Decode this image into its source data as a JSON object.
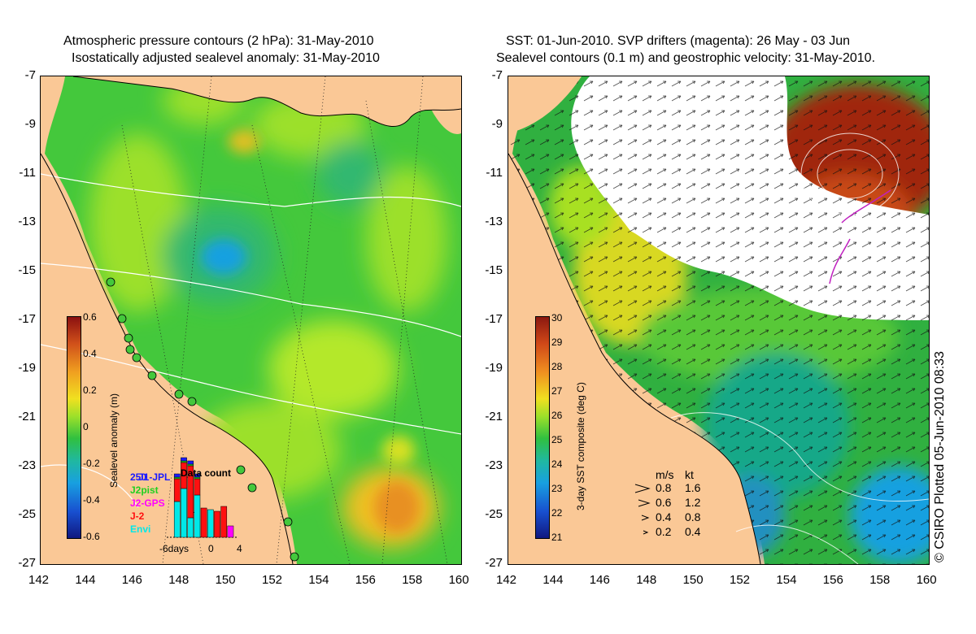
{
  "left_panel": {
    "title_line1": "Atmospheric pressure contours (2 hPa): 31-May-2010",
    "title_line2": "Isostatically adjusted sealevel anomaly: 31-May-2010",
    "colorbar": {
      "label": "Sealevel anomaly (m)",
      "ticks": [
        "0.6",
        "0.4",
        "0.2",
        "0",
        "-0.2",
        "-0.4",
        "-0.6"
      ]
    },
    "inset": {
      "title": "Data count",
      "ymax_label": "250",
      "legend": [
        {
          "label": "J1-JPL",
          "color": "#1a1aff"
        },
        {
          "label": "J2pist",
          "color": "#20d020"
        },
        {
          "label": "J2-GPS",
          "color": "#ff00ff"
        },
        {
          "label": "J-2",
          "color": "#ff1010"
        },
        {
          "label": "Envi",
          "color": "#00e8e8"
        }
      ],
      "x_ticks": [
        "-6days",
        "0",
        "4"
      ],
      "counts": [
        {
          "day": -6,
          "envi": 0,
          "j2": 0,
          "j2gps": 0,
          "j2pist": 0,
          "jpl": 0
        },
        {
          "day": -5,
          "envi": 110,
          "j2": 70,
          "j2gps": 0,
          "j2pist": 5,
          "jpl": 10
        },
        {
          "day": -4,
          "envi": 150,
          "j2": 80,
          "j2gps": 0,
          "j2pist": 5,
          "jpl": 10
        },
        {
          "day": -3,
          "envi": 60,
          "j2": 160,
          "j2gps": 0,
          "j2pist": 5,
          "jpl": 10
        },
        {
          "day": -2,
          "envi": 130,
          "j2": 50,
          "j2gps": 0,
          "j2pist": 5,
          "jpl": 10
        },
        {
          "day": -1,
          "envi": 0,
          "j2": 90,
          "j2gps": 0,
          "j2pist": 0,
          "jpl": 0
        },
        {
          "day": 0,
          "envi": 85,
          "j2": 0,
          "j2gps": 0,
          "j2pist": 0,
          "jpl": 0
        },
        {
          "day": 1,
          "envi": 0,
          "j2": 80,
          "j2gps": 0,
          "j2pist": 0,
          "jpl": 0
        },
        {
          "day": 2,
          "envi": 0,
          "j2": 95,
          "j2gps": 0,
          "j2pist": 0,
          "jpl": 0
        },
        {
          "day": 3,
          "envi": 0,
          "j2": 0,
          "j2gps": 35,
          "j2pist": 0,
          "jpl": 0
        }
      ]
    }
  },
  "right_panel": {
    "title_line1": "SST: 01-Jun-2010. SVP drifters (magenta): 26 May - 03 Jun",
    "title_line2": "Sealevel contours (0.1 m) and geostrophic velocity: 31-May-2010.",
    "colorbar": {
      "label": "3-day SST composite (deg C)",
      "ticks": [
        "30",
        "29",
        "28",
        "27",
        "26",
        "25",
        "24",
        "23",
        "22",
        "21"
      ]
    },
    "speed_legend": {
      "header_ms": "m/s",
      "header_kt": "kt",
      "rows": [
        {
          "ms": "0.8",
          "kt": "1.6"
        },
        {
          "ms": "0.6",
          "kt": "1.2"
        },
        {
          "ms": "0.4",
          "kt": "0.8"
        },
        {
          "ms": "0.2",
          "kt": "0.4"
        }
      ]
    },
    "credit": "© CSIRO Plotted 05-Jun-2010 08:33"
  },
  "axes": {
    "lat_ticks": [
      "-7",
      "-9",
      "-11",
      "-13",
      "-15",
      "-17",
      "-19",
      "-21",
      "-23",
      "-25",
      "-27"
    ],
    "lon_ticks": [
      "142",
      "144",
      "146",
      "148",
      "150",
      "152",
      "154",
      "156",
      "158",
      "160"
    ]
  },
  "colors": {
    "land": "#fac896",
    "sea_mid": "#44c83c",
    "sea_light": "#9ce02a",
    "anomaly_low": "#18a0e0",
    "anomaly_high": "#e89020",
    "sst_hot": "#a02810",
    "cloud": "#ffffff"
  }
}
